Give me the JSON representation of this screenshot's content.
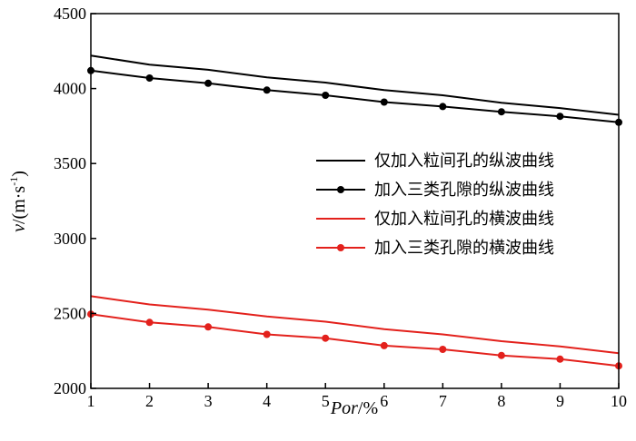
{
  "chart_data": {
    "type": "line",
    "xlabel": "Por/%",
    "xlabel_parts": {
      "italic": "Por",
      "unit": "/%"
    },
    "ylabel_parts": {
      "italic": "v",
      "unit_prefix": "/(m·s",
      "exponent": "-1",
      "unit_suffix": ")"
    },
    "x": [
      1,
      2,
      3,
      4,
      5,
      6,
      7,
      8,
      9,
      10
    ],
    "xlim": [
      1,
      10
    ],
    "ylim": [
      2000,
      4500
    ],
    "x_ticks": [
      1,
      2,
      3,
      4,
      5,
      6,
      7,
      8,
      9,
      10
    ],
    "y_ticks": [
      2000,
      2500,
      3000,
      3500,
      4000,
      4500
    ],
    "grid": false,
    "legend_position": "right",
    "series": [
      {
        "name": "仅加入粒间孔的纵波曲线",
        "color": "#000000",
        "marker": false,
        "values": [
          4220,
          4160,
          4125,
          4075,
          4040,
          3990,
          3955,
          3905,
          3870,
          3825
        ]
      },
      {
        "name": "加入三类孔隙的纵波曲线",
        "color": "#000000",
        "marker": true,
        "values": [
          4120,
          4070,
          4035,
          3990,
          3955,
          3910,
          3880,
          3845,
          3815,
          3775
        ]
      },
      {
        "name": "仅加入粒间孔的横波曲线",
        "color": "#e3211c",
        "marker": false,
        "values": [
          2615,
          2560,
          2525,
          2480,
          2445,
          2395,
          2360,
          2315,
          2280,
          2235
        ]
      },
      {
        "name": "加入三类孔隙的横波曲线",
        "color": "#e3211c",
        "marker": true,
        "values": [
          2495,
          2440,
          2410,
          2360,
          2335,
          2285,
          2260,
          2220,
          2195,
          2150
        ]
      }
    ]
  }
}
